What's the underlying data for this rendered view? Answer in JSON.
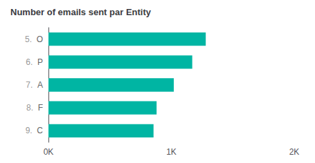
{
  "chart_data": {
    "type": "bar",
    "orientation": "horizontal",
    "title": "Number of emails sent par Entity",
    "categories": [
      "O",
      "P",
      "A",
      "F",
      "C"
    ],
    "annotations": [
      "5.",
      "6.",
      "7.",
      "8.",
      "9."
    ],
    "values": [
      1280,
      1170,
      1020,
      880,
      855
    ],
    "color": "#00b5a3",
    "xlim": [
      0,
      2000
    ],
    "xticks": [
      {
        "value": 0,
        "label": "0K"
      },
      {
        "value": 1000,
        "label": "1K"
      },
      {
        "value": 2000,
        "label": "2K"
      }
    ],
    "grid": false
  }
}
